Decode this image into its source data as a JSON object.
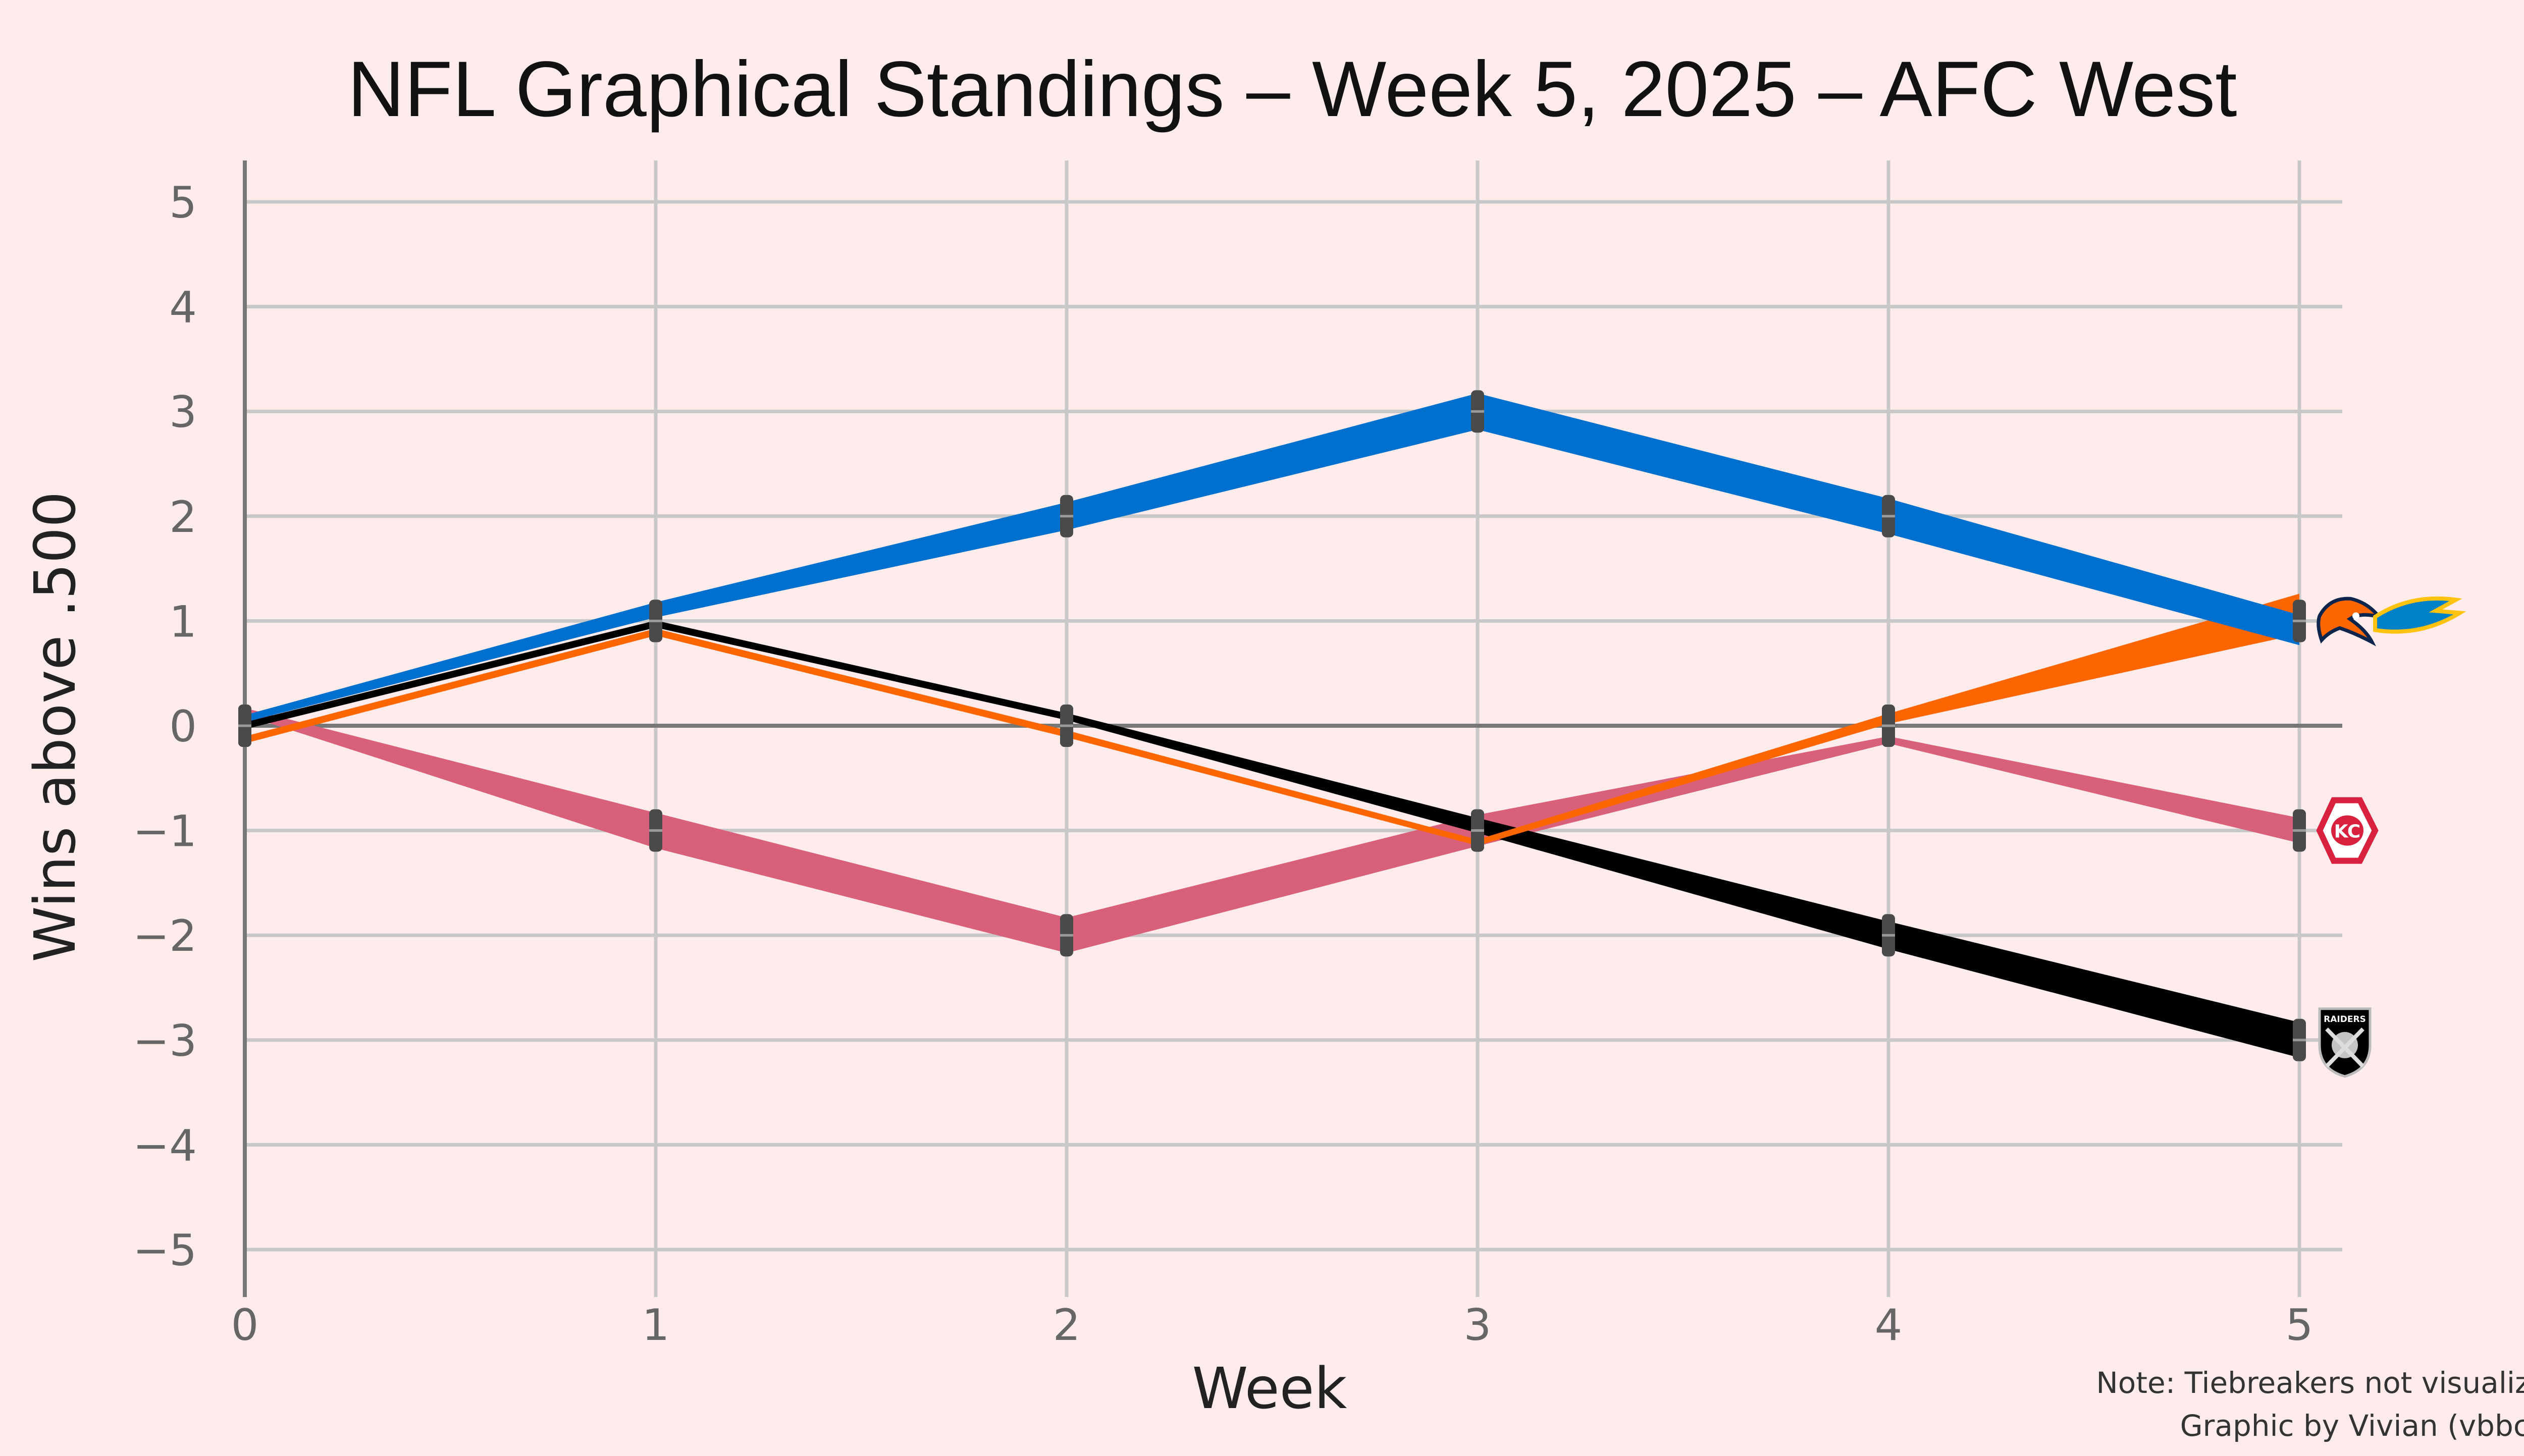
{
  "chart_data": {
    "type": "line",
    "title": "NFL Graphical Standings – Week 5, 2025 – AFC West",
    "xlabel": "Week",
    "ylabel": "Wins above .500",
    "x": [
      0,
      1,
      2,
      3,
      4,
      5
    ],
    "xlim": [
      0,
      5
    ],
    "ylim": [
      -5,
      5
    ],
    "x_ticks": [
      "0",
      "1",
      "2",
      "3",
      "4",
      "5"
    ],
    "y_ticks": [
      "5",
      "4",
      "3",
      "2",
      "1",
      "0",
      "−1",
      "−2",
      "−3",
      "−4",
      "−5"
    ],
    "grid": true,
    "series": [
      {
        "team": "chiefs",
        "color": "#d9607a",
        "values": [
          0,
          -1,
          -2,
          -1,
          0,
          -1
        ],
        "logo": "chiefs-logo-icon"
      },
      {
        "team": "raiders",
        "color": "#000000",
        "values": [
          0,
          1,
          0,
          -1,
          -2,
          -3
        ],
        "logo": "raiders-logo-icon"
      },
      {
        "team": "broncos",
        "color": "#fd6500",
        "values": [
          0,
          1,
          0,
          -1,
          0,
          1
        ],
        "logo": "broncos-logo-icon"
      },
      {
        "team": "chargers",
        "color": "#0070cf",
        "values": [
          0,
          1,
          2,
          3,
          2,
          1
        ],
        "logo": "chargers-logo-icon"
      }
    ],
    "logo_labels": {
      "raiders": "RAIDERS"
    }
  },
  "notes": {
    "line1": "Note: Tiebreakers not visualized",
    "line2": "Graphic by Vivian (vbbcla)"
  },
  "colors": {
    "background": "#fdeceb",
    "grid": "#c8c8c8",
    "axis": "#777777",
    "marker": "#4a4a4a"
  }
}
